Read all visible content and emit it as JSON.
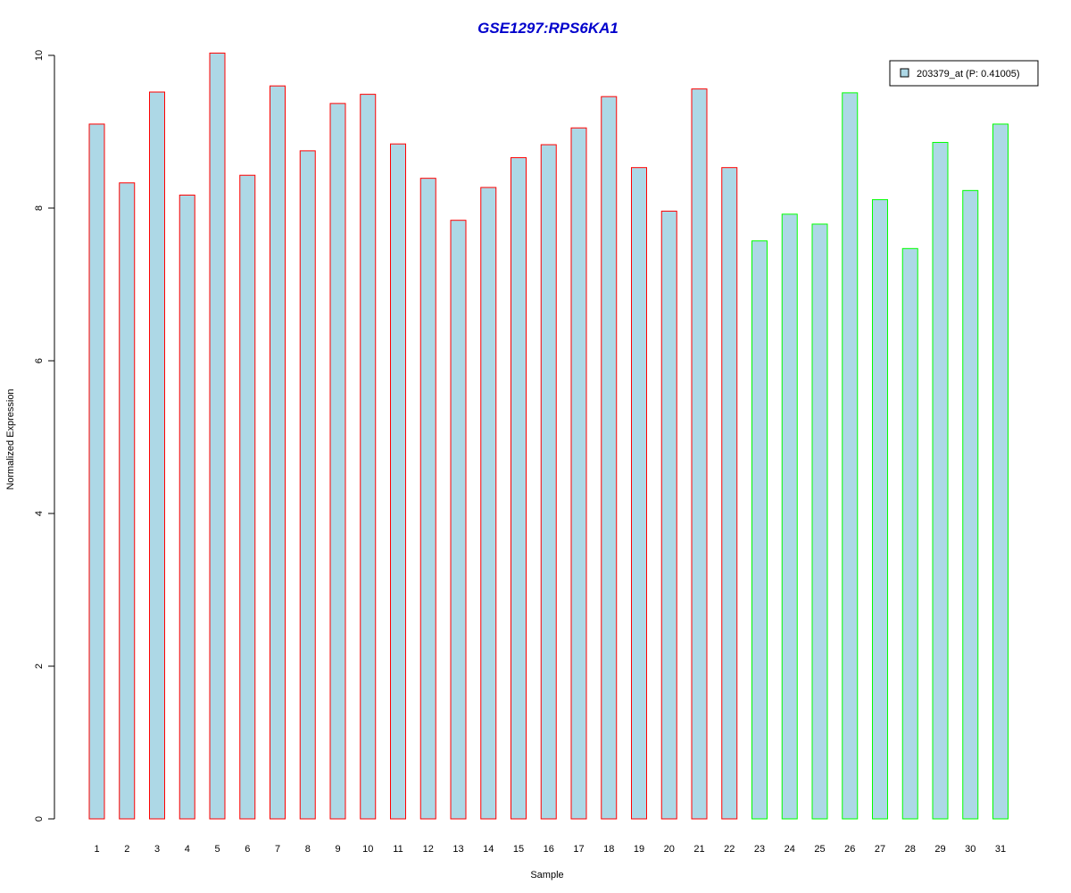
{
  "chart_data": {
    "type": "bar",
    "title": "GSE1297:RPS6KA1",
    "xlabel": "Sample",
    "ylabel": "Normalized Expression",
    "ylim": [
      0,
      10
    ],
    "yticks": [
      0,
      2,
      4,
      6,
      8,
      10
    ],
    "grid": false,
    "categories": [
      "1",
      "2",
      "3",
      "4",
      "5",
      "6",
      "7",
      "8",
      "9",
      "10",
      "11",
      "12",
      "13",
      "14",
      "15",
      "16",
      "17",
      "18",
      "19",
      "20",
      "21",
      "22",
      "23",
      "24",
      "25",
      "26",
      "27",
      "28",
      "29",
      "30",
      "31"
    ],
    "series": [
      {
        "name": "203379_at (P: 0.41005)",
        "values": [
          9.1,
          8.33,
          9.52,
          8.17,
          10.03,
          8.43,
          9.6,
          8.75,
          9.37,
          9.49,
          8.84,
          8.39,
          7.84,
          8.27,
          8.66,
          8.83,
          9.05,
          9.46,
          8.53,
          7.96,
          9.56,
          8.53,
          7.57,
          7.92,
          7.79,
          9.51,
          8.11,
          7.47,
          8.86,
          8.23,
          9.1
        ]
      }
    ],
    "bar_fill": "#add8e6",
    "bar_border_colors": [
      "#ff0000",
      "#ff0000",
      "#ff0000",
      "#ff0000",
      "#ff0000",
      "#ff0000",
      "#ff0000",
      "#ff0000",
      "#ff0000",
      "#ff0000",
      "#ff0000",
      "#ff0000",
      "#ff0000",
      "#ff0000",
      "#ff0000",
      "#ff0000",
      "#ff0000",
      "#ff0000",
      "#ff0000",
      "#ff0000",
      "#ff0000",
      "#ff0000",
      "#00ff00",
      "#00ff00",
      "#00ff00",
      "#00ff00",
      "#00ff00",
      "#00ff00",
      "#00ff00",
      "#00ff00",
      "#00ff00"
    ],
    "title_color": "#0000cc",
    "legend_position": "top-right"
  }
}
